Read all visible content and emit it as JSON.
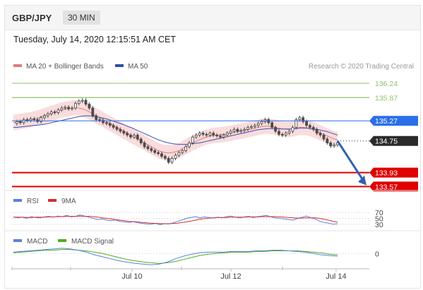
{
  "header": {
    "symbol": "GBP/JPY",
    "timeframe": "30 MIN"
  },
  "datetime": "Tuesday, July 14, 2020 12:15:51 AM CET",
  "colors": {
    "price": "#4a4a4a",
    "ma20": "#e07a7a",
    "bands": "#f8d6d6",
    "ma50": "#3f51b5",
    "support": "#e00000",
    "resistance_blue": "#2a6fe8",
    "target_green": "#8dc26a",
    "last": "#2b2b2b",
    "arrow": "#2f63b0",
    "rsi": "#5b7fe0",
    "rsi_ma": "#d03030",
    "macd": "#5b7fe0",
    "macd_signal": "#4caf1a"
  },
  "legend": {
    "ma20": "MA 20 + Bollinger Bands",
    "ma50": "MA 50",
    "credit": "Research © 2020 Trading Central"
  },
  "rsi_legend": {
    "rsi": "RSI",
    "ma": "9MA"
  },
  "macd_legend": {
    "macd": "MACD",
    "signal": "MACD Signal"
  },
  "x_ticks": [
    "Jul 10",
    "Jul 12",
    "Jul 14"
  ],
  "chart_data": [
    {
      "type": "line",
      "title": "GBP/JPY 30 MIN",
      "ylim": [
        133.45,
        136.55
      ],
      "levels": [
        {
          "value": 136.24,
          "label": "136.24",
          "kind": "target-green"
        },
        {
          "value": 135.87,
          "label": "135.87",
          "kind": "target-green"
        },
        {
          "value": 135.27,
          "label": "135.27",
          "kind": "resistance"
        },
        {
          "value": 134.75,
          "label": "134.75",
          "kind": "last-price"
        },
        {
          "value": 133.93,
          "label": "133.93",
          "kind": "support"
        },
        {
          "value": 133.57,
          "label": "133.57",
          "kind": "support"
        }
      ],
      "series": [
        {
          "name": "Price",
          "values": [
            135.2,
            135.25,
            135.22,
            135.3,
            135.28,
            135.32,
            135.3,
            135.25,
            135.35,
            135.4,
            135.45,
            135.5,
            135.48,
            135.55,
            135.6,
            135.62,
            135.58,
            135.6,
            135.72,
            135.78,
            135.8,
            135.7,
            135.6,
            135.4,
            135.3,
            135.28,
            135.22,
            135.2,
            135.15,
            135.1,
            135.05,
            135.0,
            134.95,
            134.9,
            134.85,
            134.9,
            134.8,
            134.7,
            134.6,
            134.55,
            134.5,
            134.45,
            134.42,
            134.35,
            134.3,
            134.2,
            134.3,
            134.38,
            134.45,
            134.5,
            134.6,
            134.7,
            134.85,
            134.9,
            134.95,
            134.92,
            134.9,
            134.95,
            134.9,
            134.88,
            134.85,
            134.9,
            134.95,
            135.0,
            135.05,
            135.0,
            135.02,
            135.05,
            135.1,
            135.12,
            135.15,
            135.2,
            135.25,
            135.3,
            135.22,
            135.1,
            135.0,
            134.92,
            134.9,
            134.95,
            135.0,
            135.1,
            135.3,
            135.35,
            135.25,
            135.15,
            135.1,
            135.05,
            134.95,
            134.9,
            134.8,
            134.7,
            134.62,
            134.65,
            134.7
          ]
        },
        {
          "name": "MA 20",
          "values": [
            135.22,
            135.24,
            135.25,
            135.27,
            135.28,
            135.3,
            135.32,
            135.34,
            135.37,
            135.4,
            135.43,
            135.46,
            135.49,
            135.52,
            135.55,
            135.57,
            135.58,
            135.6,
            135.61,
            135.6,
            135.58,
            135.55,
            135.5,
            135.45,
            135.4,
            135.35,
            135.3,
            135.25,
            135.2,
            135.15,
            135.1,
            135.05,
            135.0,
            134.95,
            134.9,
            134.85,
            134.8,
            134.75,
            134.7,
            134.65,
            134.6,
            134.55,
            134.5,
            134.47,
            134.45,
            134.44,
            134.45,
            134.47,
            134.5,
            134.55,
            134.6,
            134.65,
            134.7,
            134.74,
            134.78,
            134.82,
            134.85,
            134.87,
            134.89,
            134.9,
            134.91,
            134.92,
            134.93,
            134.95,
            134.97,
            134.99,
            135.0,
            135.02,
            135.04,
            135.06,
            135.08,
            135.1,
            135.12,
            135.13,
            135.13,
            135.12,
            135.1,
            135.08,
            135.06,
            135.05,
            135.05,
            135.06,
            135.08,
            135.1,
            135.1,
            135.09,
            135.07,
            135.04,
            135.0,
            134.96,
            134.92,
            134.88,
            134.84,
            134.8,
            134.78
          ]
        },
        {
          "name": "MA 50",
          "values": [
            135.1,
            135.1,
            135.11,
            135.12,
            135.13,
            135.14,
            135.15,
            135.16,
            135.17,
            135.18,
            135.2,
            135.22,
            135.24,
            135.26,
            135.28,
            135.3,
            135.32,
            135.34,
            135.36,
            135.38,
            135.39,
            135.4,
            135.4,
            135.39,
            135.38,
            135.36,
            135.34,
            135.32,
            135.29,
            135.26,
            135.23,
            135.2,
            135.17,
            135.13,
            135.1,
            135.06,
            135.02,
            134.98,
            134.94,
            134.9,
            134.86,
            134.82,
            134.78,
            134.75,
            134.72,
            134.7,
            134.68,
            134.67,
            134.66,
            134.66,
            134.66,
            134.67,
            134.68,
            134.69,
            134.7,
            134.72,
            134.74,
            134.76,
            134.78,
            134.8,
            134.82,
            134.84,
            134.86,
            134.88,
            134.9,
            134.92,
            134.94,
            134.96,
            134.98,
            135.0,
            135.02,
            135.04,
            135.05,
            135.06,
            135.07,
            135.07,
            135.07,
            135.06,
            135.06,
            135.06,
            135.06,
            135.06,
            135.07,
            135.08,
            135.08,
            135.08,
            135.07,
            135.06,
            135.05,
            135.03,
            135.01,
            134.99,
            134.96,
            134.93,
            134.9
          ]
        }
      ]
    },
    {
      "type": "line",
      "title": "RSI",
      "ylim": [
        20,
        80
      ],
      "levels": [
        {
          "value": 70,
          "label": "70"
        },
        {
          "value": 50,
          "label": "50"
        },
        {
          "value": 30,
          "label": "30"
        }
      ],
      "series": [
        {
          "name": "RSI",
          "values": [
            55,
            52,
            54,
            50,
            56,
            53,
            52,
            55,
            57,
            54,
            58,
            56,
            60,
            55,
            57,
            62,
            58,
            54,
            50,
            46,
            48,
            44,
            42,
            45,
            40,
            38,
            36,
            39,
            35,
            33,
            31,
            30,
            33,
            29,
            32,
            31,
            35,
            40,
            45,
            50,
            53,
            56,
            52,
            55,
            53,
            51,
            54,
            52,
            56,
            58,
            54,
            52,
            55,
            57,
            53,
            56,
            58,
            60,
            55,
            52,
            50,
            48,
            46,
            44,
            50,
            54,
            58,
            52,
            48,
            40,
            36,
            34,
            30,
            32
          ]
        },
        {
          "name": "9MA",
          "values": [
            54,
            54,
            54,
            53,
            53,
            54,
            54,
            54,
            55,
            55,
            56,
            56,
            57,
            57,
            57,
            58,
            57,
            57,
            56,
            54,
            52,
            50,
            48,
            46,
            44,
            42,
            40,
            39,
            38,
            36,
            35,
            34,
            33,
            32,
            32,
            32,
            33,
            34,
            36,
            38,
            41,
            44,
            47,
            49,
            51,
            52,
            53,
            53,
            53,
            54,
            54,
            54,
            54,
            55,
            55,
            55,
            56,
            56,
            56,
            56,
            55,
            54,
            53,
            52,
            51,
            51,
            52,
            52,
            52,
            50,
            47,
            44,
            40,
            37
          ]
        }
      ]
    },
    {
      "type": "line",
      "title": "MACD",
      "ylim": [
        -0.2,
        0.12
      ],
      "levels": [
        {
          "value": 0,
          "label": "0"
        }
      ],
      "series": [
        {
          "name": "MACD",
          "values": [
            0.02,
            0.03,
            0.04,
            0.05,
            0.06,
            0.07,
            0.08,
            0.07,
            0.05,
            0.02,
            -0.02,
            -0.05,
            -0.08,
            -0.11,
            -0.13,
            -0.15,
            -0.16,
            -0.17,
            -0.16,
            -0.13,
            -0.08,
            -0.04,
            -0.01,
            0.01,
            0.02,
            0.02,
            0.02,
            0.03,
            0.03,
            0.03,
            0.04,
            0.04,
            0.05,
            0.05,
            0.04,
            0.03,
            0.02,
            0.0,
            -0.02,
            -0.03,
            -0.04
          ]
        },
        {
          "name": "MACD Signal",
          "values": [
            0.01,
            0.02,
            0.03,
            0.04,
            0.05,
            0.05,
            0.06,
            0.06,
            0.05,
            0.04,
            0.02,
            0.0,
            -0.03,
            -0.06,
            -0.09,
            -0.11,
            -0.13,
            -0.14,
            -0.15,
            -0.14,
            -0.12,
            -0.09,
            -0.06,
            -0.03,
            -0.01,
            0.0,
            0.01,
            0.02,
            0.02,
            0.02,
            0.03,
            0.03,
            0.04,
            0.04,
            0.04,
            0.04,
            0.03,
            0.02,
            0.01,
            -0.01,
            -0.02
          ]
        }
      ]
    }
  ]
}
